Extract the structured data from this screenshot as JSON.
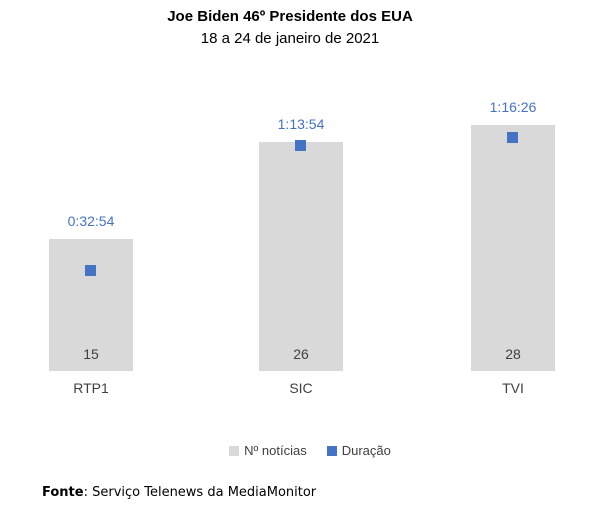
{
  "header": {
    "title": "Joe Biden 46º Presidente dos EUA",
    "subtitle": "18 a 24 de janeiro de 2021"
  },
  "chart_data": {
    "type": "bar",
    "title": "Joe Biden 46º Presidente dos EUA",
    "subtitle": "18 a 24 de janeiro de 2021",
    "categories": [
      "RTP1",
      "SIC",
      "TVI"
    ],
    "series": [
      {
        "name": "Nº notícias",
        "type": "bar",
        "values": [
          15,
          26,
          28
        ],
        "color": "#d9d9d9",
        "value_label_position": "inside-bottom"
      },
      {
        "name": "Duração",
        "type": "scatter",
        "marker": "square",
        "values_hms": [
          "0:32:54",
          "1:13:54",
          "1:16:26"
        ],
        "values_minutes": [
          32.9,
          73.9,
          76.43
        ],
        "color": "#4472c4",
        "value_label_position": "above-bar"
      }
    ],
    "xlabel": "",
    "ylabel": "",
    "grid": false,
    "axes_visible": false,
    "legend_position": "bottom"
  },
  "legend": {
    "items": [
      {
        "label": "Nº notícias",
        "color": "#d9d9d9"
      },
      {
        "label": "Duração",
        "color": "#4472c4"
      }
    ]
  },
  "footer": {
    "label": "Fonte",
    "separator": ": ",
    "text": "Serviço Telenews da MediaMonitor"
  },
  "colors": {
    "bar": "#d9d9d9",
    "accent": "#4472c4",
    "axis_text": "#404040",
    "background": "#ffffff"
  }
}
